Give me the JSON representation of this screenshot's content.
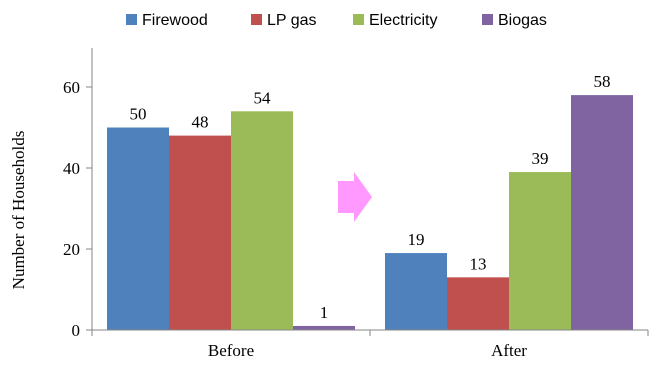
{
  "chart_data": {
    "type": "bar",
    "categories": [
      "Before",
      "After"
    ],
    "series": [
      {
        "name": "Firewood",
        "values": [
          50,
          19
        ],
        "color": "#4F81BD"
      },
      {
        "name": "LP gas",
        "values": [
          48,
          13
        ],
        "color": "#C0504D"
      },
      {
        "name": "Electricity",
        "values": [
          54,
          39
        ],
        "color": "#9BBB59"
      },
      {
        "name": "Biogas",
        "values": [
          1,
          58
        ],
        "color": "#8064A2"
      }
    ],
    "ylabel": "Number of Households",
    "xlabel": "",
    "ylim": [
      0,
      60
    ],
    "yticks": [
      0,
      20,
      40,
      60
    ],
    "grid": false,
    "legend": "top",
    "data_labels": true,
    "annotation": {
      "shape": "right-arrow",
      "color": "#FF99FF"
    }
  }
}
